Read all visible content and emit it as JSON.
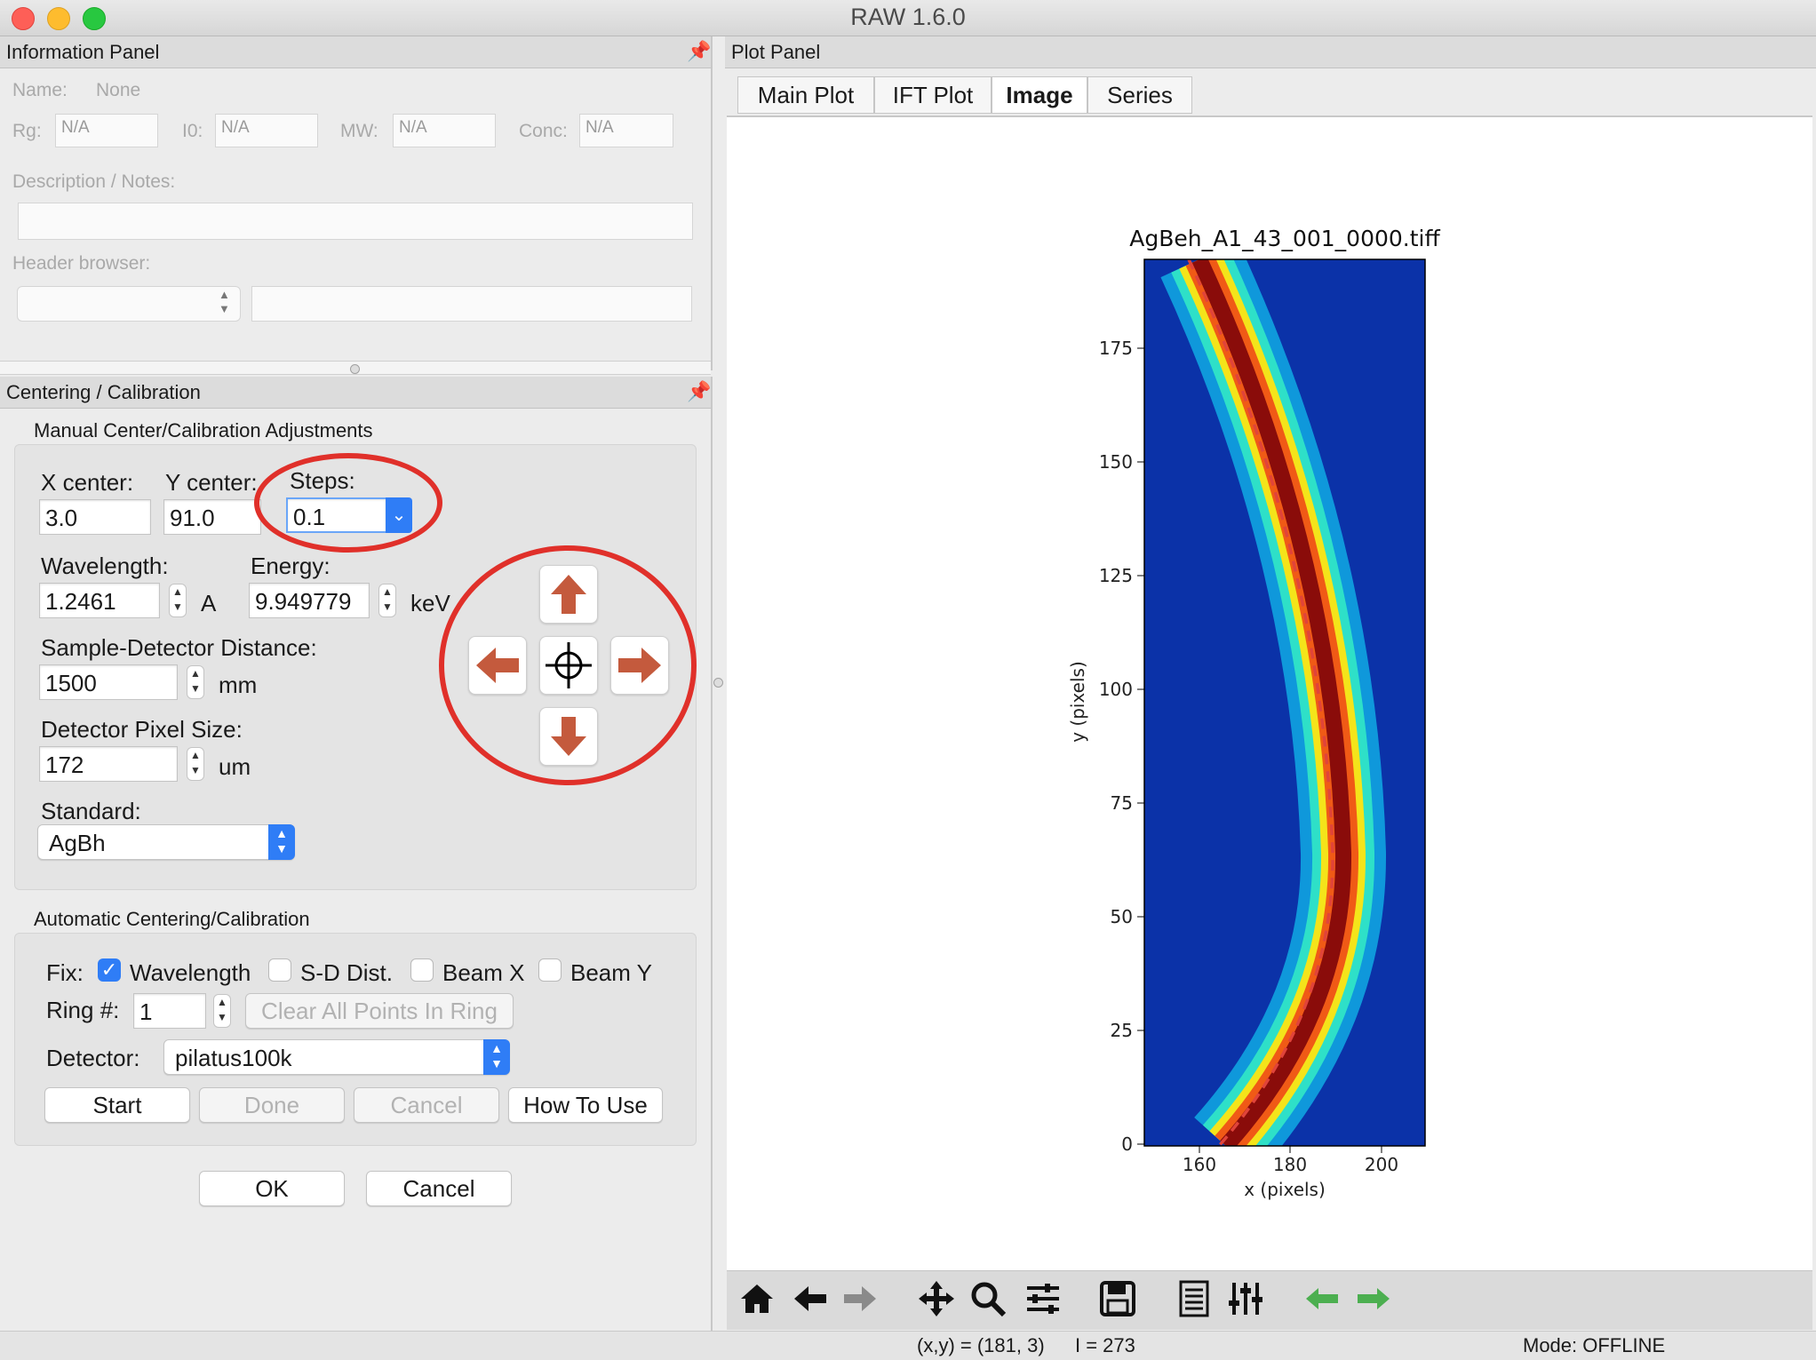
{
  "window": {
    "title": "RAW 1.6.0"
  },
  "info_panel": {
    "title": "Information Panel",
    "name_label": "Name:",
    "name_value": "None",
    "rg_label": "Rg:",
    "rg_value": "N/A",
    "i0_label": "I0:",
    "i0_value": "N/A",
    "mw_label": "MW:",
    "mw_value": "N/A",
    "conc_label": "Conc:",
    "conc_value": "N/A",
    "notes_label": "Description / Notes:",
    "header_label": "Header browser:"
  },
  "calib_panel": {
    "title": "Centering / Calibration",
    "manual": {
      "title": "Manual Center/Calibration Adjustments",
      "x_center_label": "X center:",
      "x_center": "3.0",
      "y_center_label": "Y center:",
      "y_center": "91.0",
      "steps_label": "Steps:",
      "steps": "0.1",
      "wavelength_label": "Wavelength:",
      "wavelength": "1.2461",
      "wavelength_unit": "A",
      "energy_label": "Energy:",
      "energy": "9.949779",
      "energy_unit": "keV",
      "sdd_label": "Sample-Detector Distance:",
      "sdd": "1500",
      "sdd_unit": "mm",
      "pixel_label": "Detector Pixel Size:",
      "pixel": "172",
      "pixel_unit": "um",
      "standard_label": "Standard:",
      "standard": "AgBh"
    },
    "auto": {
      "title": "Automatic Centering/Calibration",
      "fix_label": "Fix:",
      "fix_wavelength": "Wavelength",
      "fix_sd": "S-D Dist.",
      "fix_beamx": "Beam X",
      "fix_beamy": "Beam Y",
      "ring_label": "Ring #:",
      "ring": "1",
      "clear_label": "Clear All Points In Ring",
      "detector_label": "Detector:",
      "detector": "pilatus100k",
      "start": "Start",
      "done": "Done",
      "cancel": "Cancel",
      "howto": "How To Use"
    },
    "ok": "OK",
    "cancel": "Cancel"
  },
  "plot_panel": {
    "title": "Plot Panel",
    "tabs": [
      "Main Plot",
      "IFT Plot",
      "Image",
      "Series"
    ],
    "active_tab": "Image"
  },
  "chart_data": {
    "type": "heatmap",
    "title": "AgBeh_A1_43_001_0000.tiff",
    "xlabel": "x (pixels)",
    "ylabel": "y (pixels)",
    "xlim": [
      149,
      195
    ],
    "ylim": [
      0,
      195
    ],
    "xticks": [
      160,
      180,
      200
    ],
    "yticks": [
      0,
      25,
      50,
      75,
      100,
      125,
      150,
      175
    ],
    "colormap": "jet",
    "ring_fit": "dashed red arc (calibration ring)"
  },
  "status": {
    "coords": "(x,y) = (181, 3)",
    "intensity": "I = 273",
    "mode": "Mode: OFFLINE"
  },
  "colors": {
    "accent": "#2f7df6",
    "arrow": "#c45a3d",
    "annotation": "#e0302a"
  }
}
